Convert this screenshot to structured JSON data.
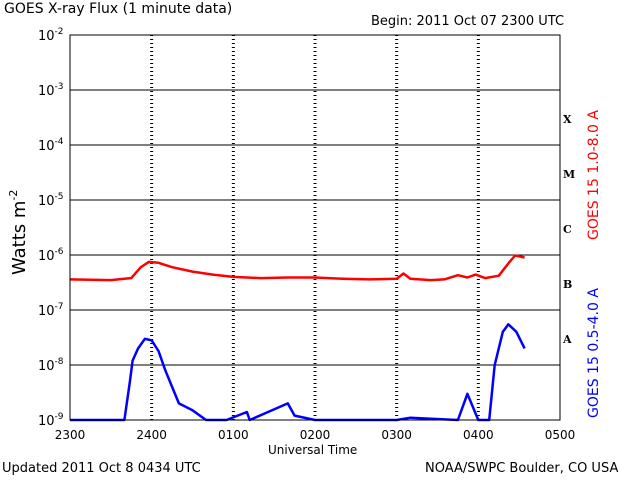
{
  "header": {
    "title": "GOES X-ray Flux (1 minute data)",
    "begin": "Begin: 2011 Oct 07 2300 UTC"
  },
  "footer": {
    "updated": "Updated 2011 Oct  8 0434 UTC",
    "credit": "NOAA/SWPC Boulder, CO USA"
  },
  "chart_data": {
    "type": "line",
    "title": "GOES X-ray Flux (1 minute data)",
    "xlabel": "Universal Time",
    "ylabel": "Watts m-2",
    "yscale": "log",
    "ylim": [
      1e-09,
      0.01
    ],
    "xlim_hours_utc": [
      "2300",
      "0500"
    ],
    "x_ticks": [
      "2300",
      "2400",
      "0100",
      "0200",
      "0300",
      "0400",
      "0500"
    ],
    "y_ticks": [
      {
        "value": 0.01,
        "base": "10",
        "exp": "-2"
      },
      {
        "value": 0.001,
        "base": "10",
        "exp": "-3"
      },
      {
        "value": 0.0001,
        "base": "10",
        "exp": "-4"
      },
      {
        "value": 1e-05,
        "base": "10",
        "exp": "-5"
      },
      {
        "value": 1e-06,
        "base": "10",
        "exp": "-6"
      },
      {
        "value": 1e-07,
        "base": "10",
        "exp": "-7"
      },
      {
        "value": 1e-08,
        "base": "10",
        "exp": "-8"
      },
      {
        "value": 1e-09,
        "base": "10",
        "exp": "-9"
      }
    ],
    "flare_classes": [
      {
        "label": "X",
        "value": 0.0003
      },
      {
        "label": "M",
        "value": 3e-05
      },
      {
        "label": "C",
        "value": 3e-06
      },
      {
        "label": "B",
        "value": 3e-07
      },
      {
        "label": "A",
        "value": 3e-08
      }
    ],
    "grid": true,
    "colors": {
      "red": "#ff0000",
      "blue": "#0000ff"
    },
    "series": [
      {
        "name": "GOES 15 1.0-8.0 A",
        "color": "#ff0000",
        "points": [
          [
            "2011-10-07T23:00",
            3.6e-07
          ],
          [
            "2011-10-07T23:30",
            3.5e-07
          ],
          [
            "2011-10-07T23:45",
            3.8e-07
          ],
          [
            "2011-10-07T23:52",
            6e-07
          ],
          [
            "2011-10-07T23:58",
            7.5e-07
          ],
          [
            "2011-10-08T00:05",
            7.2e-07
          ],
          [
            "2011-10-08T00:15",
            6e-07
          ],
          [
            "2011-10-08T00:30",
            5e-07
          ],
          [
            "2011-10-08T00:45",
            4.4e-07
          ],
          [
            "2011-10-08T01:00",
            4e-07
          ],
          [
            "2011-10-08T01:20",
            3.8e-07
          ],
          [
            "2011-10-08T01:40",
            3.9e-07
          ],
          [
            "2011-10-08T02:00",
            3.9e-07
          ],
          [
            "2011-10-08T02:20",
            3.7e-07
          ],
          [
            "2011-10-08T02:40",
            3.6e-07
          ],
          [
            "2011-10-08T03:00",
            3.7e-07
          ],
          [
            "2011-10-08T03:05",
            4.6e-07
          ],
          [
            "2011-10-08T03:10",
            3.7e-07
          ],
          [
            "2011-10-08T03:25",
            3.5e-07
          ],
          [
            "2011-10-08T03:35",
            3.6e-07
          ],
          [
            "2011-10-08T03:45",
            4.3e-07
          ],
          [
            "2011-10-08T03:52",
            3.9e-07
          ],
          [
            "2011-10-08T03:58",
            4.4e-07
          ],
          [
            "2011-10-08T04:05",
            3.8e-07
          ],
          [
            "2011-10-08T04:15",
            4.2e-07
          ],
          [
            "2011-10-08T04:22",
            7e-07
          ],
          [
            "2011-10-08T04:27",
            9.8e-07
          ],
          [
            "2011-10-08T04:34",
            9e-07
          ]
        ]
      },
      {
        "name": "GOES 15 0.5-4.0 A",
        "color": "#0000ff",
        "points": [
          [
            "2011-10-07T23:00",
            8e-10
          ],
          [
            "2011-10-07T23:40",
            8e-10
          ],
          [
            "2011-10-07T23:44",
            5e-09
          ],
          [
            "2011-10-07T23:46",
            1.2e-08
          ],
          [
            "2011-10-07T23:50",
            2e-08
          ],
          [
            "2011-10-07T23:55",
            3e-08
          ],
          [
            "2011-10-08T00:00",
            2.8e-08
          ],
          [
            "2011-10-08T00:05",
            1.8e-08
          ],
          [
            "2011-10-08T00:10",
            8e-09
          ],
          [
            "2011-10-08T00:15",
            4e-09
          ],
          [
            "2011-10-08T00:20",
            2e-09
          ],
          [
            "2011-10-08T00:30",
            1.5e-09
          ],
          [
            "2011-10-08T00:40",
            1e-09
          ],
          [
            "2011-10-08T00:55",
            8e-10
          ],
          [
            "2011-10-08T01:10",
            1.4e-09
          ],
          [
            "2011-10-08T01:12",
            8e-10
          ],
          [
            "2011-10-08T01:40",
            2e-09
          ],
          [
            "2011-10-08T01:45",
            1.2e-09
          ],
          [
            "2011-10-08T02:00",
            8e-10
          ],
          [
            "2011-10-08T03:00",
            8e-10
          ],
          [
            "2011-10-08T03:10",
            1.1e-09
          ],
          [
            "2011-10-08T03:45",
            8e-10
          ],
          [
            "2011-10-08T03:52",
            3e-09
          ],
          [
            "2011-10-08T04:00",
            8e-10
          ],
          [
            "2011-10-08T04:08",
            8e-10
          ],
          [
            "2011-10-08T04:12",
            1e-08
          ],
          [
            "2011-10-08T04:18",
            4e-08
          ],
          [
            "2011-10-08T04:22",
            5.5e-08
          ],
          [
            "2011-10-08T04:28",
            4e-08
          ],
          [
            "2011-10-08T04:34",
            2e-08
          ]
        ]
      }
    ]
  }
}
